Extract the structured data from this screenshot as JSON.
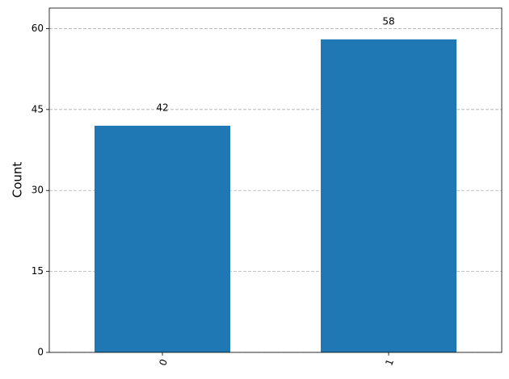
{
  "chart_data": {
    "type": "bar",
    "y_label": "Count",
    "categories": [
      "0",
      "1"
    ],
    "values": [
      42,
      58
    ],
    "color": "#1f77b4",
    "ylim": [
      0,
      63.8
    ],
    "yticks": [
      0,
      15,
      30,
      45,
      60
    ],
    "grid": true
  }
}
